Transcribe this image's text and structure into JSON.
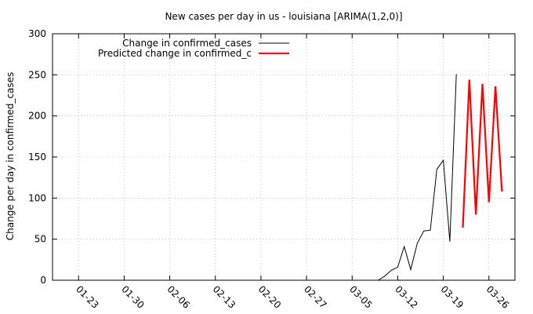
{
  "chart_data": {
    "type": "line",
    "title": "New cases per day in us - louisiana [ARIMA(1,2,0)]",
    "xlabel": "",
    "ylabel": "Change per day in confirmed_cases",
    "ylim": [
      0,
      300
    ],
    "yticks": [
      0,
      50,
      100,
      150,
      200,
      250,
      300
    ],
    "xlim": [
      "2020-01-19",
      "2020-03-30"
    ],
    "xticks": [
      {
        "date": "2020-01-23",
        "label": "01-23"
      },
      {
        "date": "2020-01-30",
        "label": "01-30"
      },
      {
        "date": "2020-02-06",
        "label": "02-06"
      },
      {
        "date": "2020-02-13",
        "label": "02-13"
      },
      {
        "date": "2020-02-20",
        "label": "02-20"
      },
      {
        "date": "2020-02-27",
        "label": "02-27"
      },
      {
        "date": "2020-03-05",
        "label": "03-05"
      },
      {
        "date": "2020-03-12",
        "label": "03-12"
      },
      {
        "date": "2020-03-19",
        "label": "03-19"
      },
      {
        "date": "2020-03-26",
        "label": "03-26"
      }
    ],
    "grid": true,
    "legend_position": "top-left",
    "series": [
      {
        "name": "Change in confirmed_cases",
        "color": "#000000",
        "points": [
          {
            "x": "2020-03-09",
            "y": 0
          },
          {
            "x": "2020-03-10",
            "y": 5
          },
          {
            "x": "2020-03-11",
            "y": 12
          },
          {
            "x": "2020-03-12",
            "y": 16
          },
          {
            "x": "2020-03-13",
            "y": 41
          },
          {
            "x": "2020-03-14",
            "y": 13
          },
          {
            "x": "2020-03-15",
            "y": 45
          },
          {
            "x": "2020-03-16",
            "y": 60
          },
          {
            "x": "2020-03-17",
            "y": 61
          },
          {
            "x": "2020-03-18",
            "y": 135
          },
          {
            "x": "2020-03-19",
            "y": 146
          },
          {
            "x": "2020-03-20",
            "y": 47
          },
          {
            "x": "2020-03-21",
            "y": 251
          }
        ]
      },
      {
        "name": "Predicted change in confirmed_c",
        "color": "#ff0000",
        "points": [
          {
            "x": "2020-03-22",
            "y": 64
          },
          {
            "x": "2020-03-23",
            "y": 244
          },
          {
            "x": "2020-03-24",
            "y": 80
          },
          {
            "x": "2020-03-25",
            "y": 239
          },
          {
            "x": "2020-03-26",
            "y": 95
          },
          {
            "x": "2020-03-27",
            "y": 236
          },
          {
            "x": "2020-03-28",
            "y": 108
          }
        ]
      }
    ]
  }
}
